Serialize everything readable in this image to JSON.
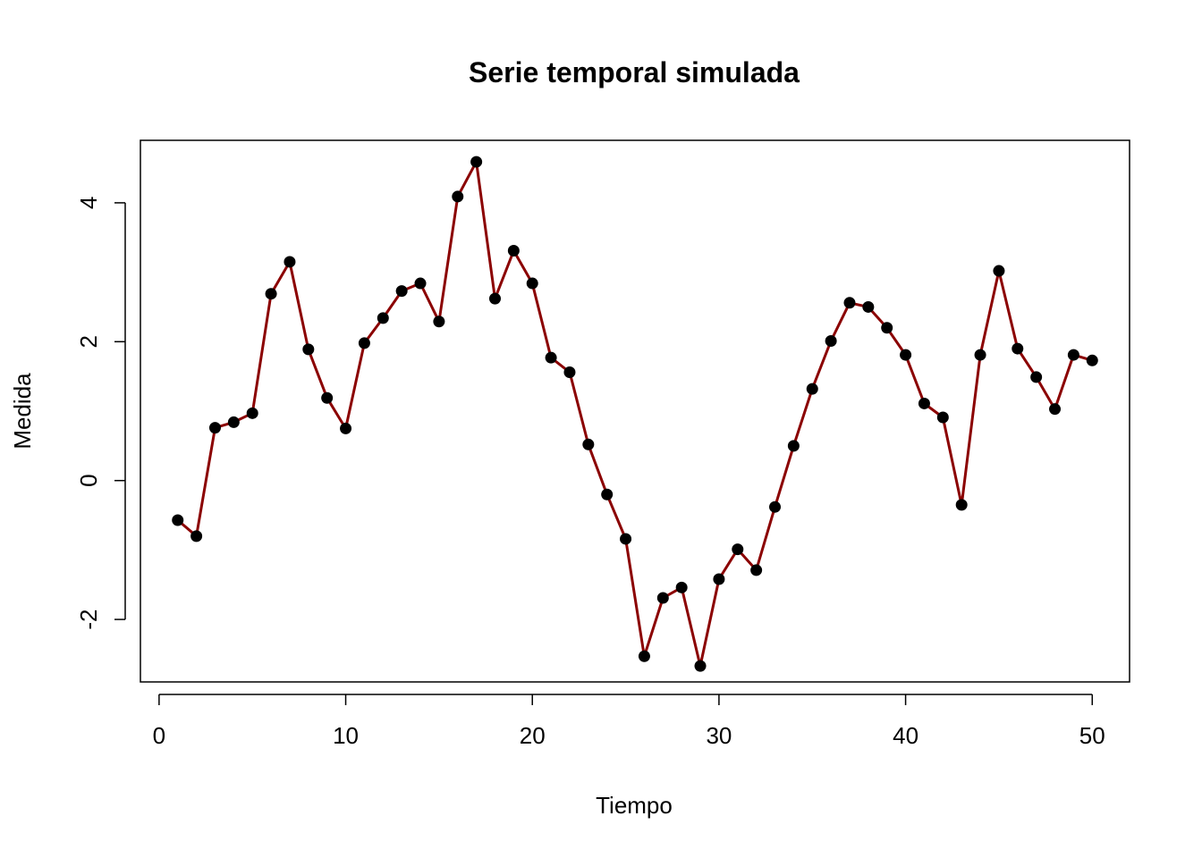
{
  "chart_data": {
    "type": "line",
    "title": "Serie temporal simulada",
    "xlabel": "Tiempo",
    "ylabel": "Medida",
    "xlim": [
      -1,
      52
    ],
    "ylim": [
      -2.9,
      4.9
    ],
    "x_ticks": [
      0,
      10,
      20,
      30,
      40,
      50
    ],
    "y_ticks": [
      -2,
      0,
      2,
      4
    ],
    "x_tick_labels": [
      "0",
      "10",
      "20",
      "30",
      "40",
      "50"
    ],
    "y_tick_labels": [
      "-2",
      "0",
      "2",
      "4"
    ],
    "grid": false,
    "line_color": "#8B0000",
    "point_color": "#000000",
    "series": [
      {
        "x": [
          1,
          2,
          3,
          4,
          5,
          6,
          7,
          8,
          9,
          10,
          11,
          12,
          13,
          14,
          15,
          16,
          17,
          18,
          19,
          20,
          21,
          22,
          23,
          24,
          25,
          26,
          27,
          28,
          29,
          30,
          31,
          32,
          33,
          34,
          35,
          36,
          37,
          38,
          39,
          40,
          41,
          42,
          43,
          44,
          45,
          46,
          47,
          48,
          49,
          50
        ],
        "values": [
          -0.57,
          -0.8,
          0.76,
          0.84,
          0.97,
          2.69,
          3.15,
          1.89,
          1.19,
          0.75,
          1.98,
          2.34,
          2.73,
          2.84,
          2.29,
          4.09,
          4.59,
          2.62,
          3.31,
          2.84,
          1.77,
          1.56,
          0.52,
          -0.2,
          -0.84,
          -2.53,
          -1.69,
          -1.54,
          -2.67,
          -1.42,
          -0.99,
          -1.29,
          -0.38,
          0.5,
          1.32,
          2.01,
          2.56,
          2.5,
          2.2,
          1.81,
          1.11,
          0.91,
          -0.35,
          1.81,
          3.02,
          1.9,
          1.49,
          1.03,
          1.81,
          1.73
        ]
      }
    ]
  }
}
